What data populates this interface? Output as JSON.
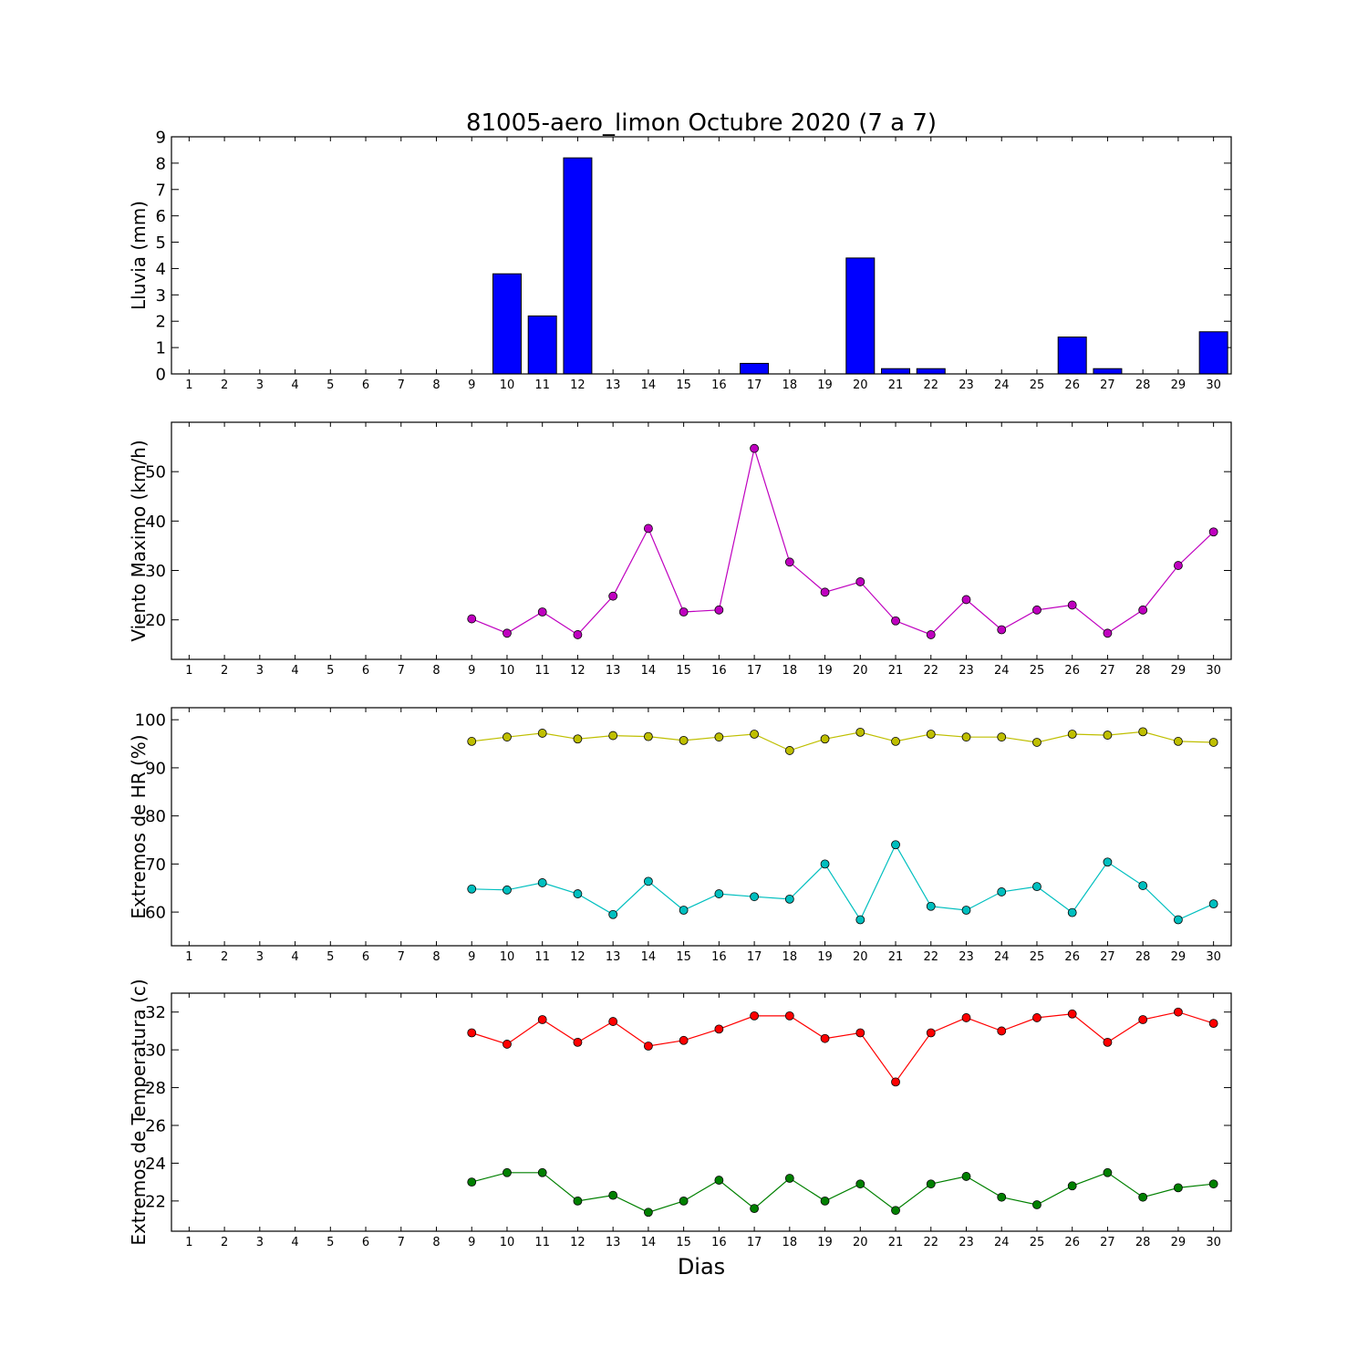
{
  "figure": {
    "title": "81005-aero_limon Octubre 2020  (7 a 7)",
    "xlabel": "Dias"
  },
  "chart_data": [
    {
      "type": "bar",
      "ylabel": "Lluvia (mm)",
      "x": [
        1,
        2,
        3,
        4,
        5,
        6,
        7,
        8,
        9,
        10,
        11,
        12,
        13,
        14,
        15,
        16,
        17,
        18,
        19,
        20,
        21,
        22,
        23,
        24,
        25,
        26,
        27,
        28,
        29,
        30
      ],
      "xlim": [
        0.5,
        30.5
      ],
      "ylim": [
        0,
        9
      ],
      "yticks": [
        0,
        1,
        2,
        3,
        4,
        5,
        6,
        7,
        8,
        9
      ],
      "grid": false,
      "series": [
        {
          "color": "#0000ff",
          "values": [
            null,
            null,
            null,
            null,
            null,
            null,
            null,
            null,
            0,
            3.8,
            2.2,
            8.2,
            0,
            0,
            0,
            0,
            0.4,
            0,
            0,
            4.4,
            0.2,
            0.2,
            0,
            0,
            0,
            1.4,
            0.2,
            0,
            0,
            1.6
          ]
        }
      ]
    },
    {
      "type": "line",
      "ylabel": "Viento Maximo (km/h)",
      "x": [
        1,
        2,
        3,
        4,
        5,
        6,
        7,
        8,
        9,
        10,
        11,
        12,
        13,
        14,
        15,
        16,
        17,
        18,
        19,
        20,
        21,
        22,
        23,
        24,
        25,
        26,
        27,
        28,
        29,
        30
      ],
      "xlim": [
        0.5,
        30.5
      ],
      "ylim": [
        12,
        60
      ],
      "yticks": [
        20,
        30,
        40,
        50
      ],
      "grid": false,
      "series": [
        {
          "color": "#bf00bf",
          "values": [
            null,
            null,
            null,
            null,
            null,
            null,
            null,
            null,
            20.2,
            17.3,
            21.6,
            17.0,
            24.8,
            38.5,
            21.6,
            22.0,
            54.7,
            31.7,
            25.6,
            27.7,
            19.8,
            17.0,
            24.1,
            18.0,
            22.0,
            23.0,
            17.3,
            22.0,
            31.0,
            37.8
          ]
        }
      ]
    },
    {
      "type": "line",
      "ylabel": "Extremos de HR (%)",
      "x": [
        1,
        2,
        3,
        4,
        5,
        6,
        7,
        8,
        9,
        10,
        11,
        12,
        13,
        14,
        15,
        16,
        17,
        18,
        19,
        20,
        21,
        22,
        23,
        24,
        25,
        26,
        27,
        28,
        29,
        30
      ],
      "xlim": [
        0.5,
        30.5
      ],
      "ylim": [
        53,
        102.5
      ],
      "yticks": [
        60,
        70,
        80,
        90,
        100
      ],
      "grid": false,
      "series": [
        {
          "color": "#bfbf00",
          "values": [
            null,
            null,
            null,
            null,
            null,
            null,
            null,
            null,
            95.5,
            96.4,
            97.2,
            96.0,
            96.7,
            96.5,
            95.7,
            96.4,
            97.0,
            93.6,
            96.0,
            97.4,
            95.5,
            97.0,
            96.4,
            96.4,
            95.3,
            97.0,
            96.8,
            97.5,
            95.5,
            95.3
          ]
        },
        {
          "color": "#00bfbf",
          "values": [
            null,
            null,
            null,
            null,
            null,
            null,
            null,
            null,
            64.8,
            64.6,
            66.1,
            63.8,
            59.5,
            66.4,
            60.4,
            63.8,
            63.2,
            62.7,
            70.0,
            58.4,
            74.0,
            61.2,
            60.4,
            64.2,
            65.3,
            59.9,
            70.4,
            65.5,
            58.4,
            61.7
          ]
        }
      ]
    },
    {
      "type": "line",
      "ylabel": "Extremos de Temperatura (c)",
      "x": [
        1,
        2,
        3,
        4,
        5,
        6,
        7,
        8,
        9,
        10,
        11,
        12,
        13,
        14,
        15,
        16,
        17,
        18,
        19,
        20,
        21,
        22,
        23,
        24,
        25,
        26,
        27,
        28,
        29,
        30
      ],
      "xlim": [
        0.5,
        30.5
      ],
      "ylim": [
        20.4,
        33.0
      ],
      "yticks": [
        22,
        24,
        26,
        28,
        30,
        32
      ],
      "grid": false,
      "series": [
        {
          "color": "#ff0000",
          "values": [
            null,
            null,
            null,
            null,
            null,
            null,
            null,
            null,
            30.9,
            30.3,
            31.6,
            30.4,
            31.5,
            30.2,
            30.5,
            31.1,
            31.8,
            31.8,
            30.6,
            30.9,
            28.3,
            30.9,
            31.7,
            31.0,
            31.7,
            31.9,
            30.4,
            31.6,
            32.0,
            31.4
          ]
        },
        {
          "color": "#008000",
          "values": [
            null,
            null,
            null,
            null,
            null,
            null,
            null,
            null,
            23.0,
            23.5,
            23.5,
            22.0,
            22.3,
            21.4,
            22.0,
            23.1,
            21.6,
            23.2,
            22.0,
            22.9,
            21.5,
            22.9,
            23.3,
            22.2,
            21.8,
            22.8,
            23.5,
            22.2,
            22.7,
            22.9
          ]
        }
      ]
    }
  ]
}
